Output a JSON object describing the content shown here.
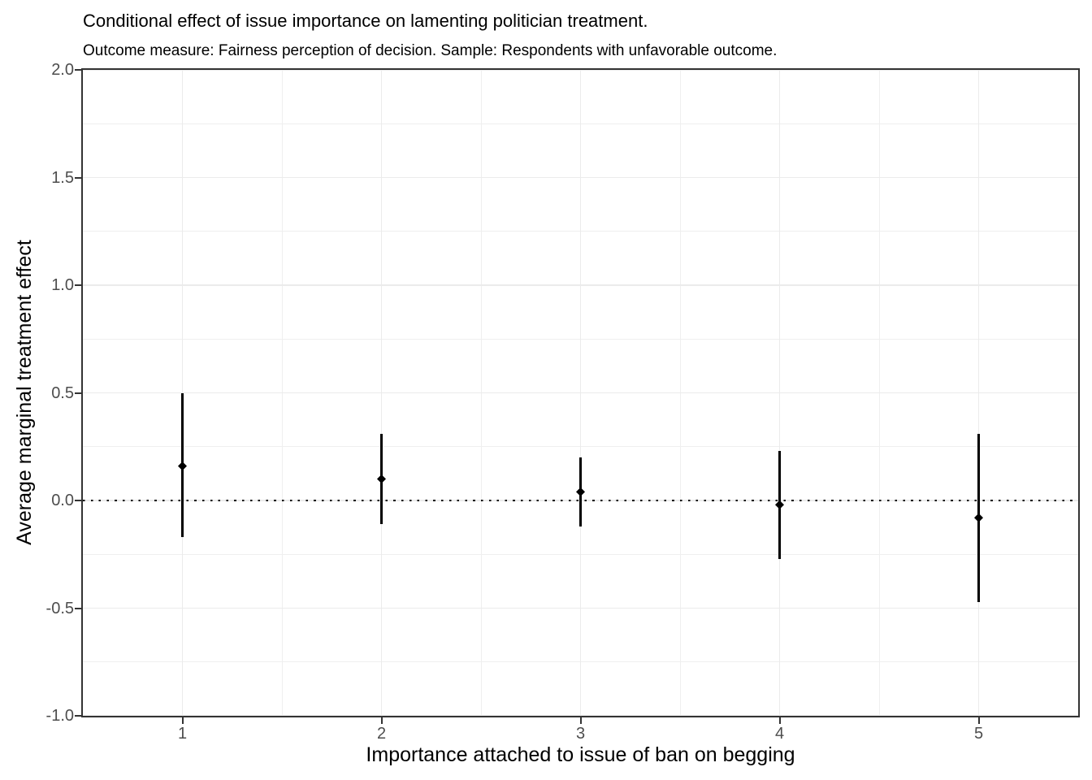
{
  "chart_data": {
    "type": "pointrange",
    "title": "Conditional effect of issue importance on lamenting politician treatment.",
    "subtitle": "Outcome measure: Fairness perception of decision. Sample: Respondents with unfavorable outcome.",
    "xlabel": "Importance attached to issue of ban on begging",
    "ylabel": "Average marginal treatment effect",
    "xlim": [
      0.5,
      5.5
    ],
    "ylim": [
      -1.0,
      2.0
    ],
    "grid": true,
    "legend": "none",
    "x_ticks": [
      {
        "value": 1,
        "label": "1"
      },
      {
        "value": 2,
        "label": "2"
      },
      {
        "value": 3,
        "label": "3"
      },
      {
        "value": 4,
        "label": "4"
      },
      {
        "value": 5,
        "label": "5"
      }
    ],
    "y_ticks": [
      {
        "value": 2.0,
        "label": "2.0"
      },
      {
        "value": 1.5,
        "label": "1.5"
      },
      {
        "value": 1.0,
        "label": "1.0"
      },
      {
        "value": 0.5,
        "label": "0.5"
      },
      {
        "value": 0.0,
        "label": "0.0"
      },
      {
        "value": -0.5,
        "label": "-0.5"
      },
      {
        "value": -1.0,
        "label": "-1.0"
      }
    ],
    "x_minor": [
      1.5,
      2.5,
      3.5,
      4.5
    ],
    "y_minor": [
      1.75,
      1.25,
      0.75,
      0.25,
      -0.25,
      -0.75
    ],
    "reference_line": {
      "y": 0,
      "style": "dotted"
    },
    "series": [
      {
        "name": "Average marginal treatment effect",
        "points": [
          {
            "x": 1,
            "estimate": 0.16,
            "ci_low": -0.17,
            "ci_high": 0.5
          },
          {
            "x": 2,
            "estimate": 0.1,
            "ci_low": -0.11,
            "ci_high": 0.31
          },
          {
            "x": 3,
            "estimate": 0.04,
            "ci_low": -0.12,
            "ci_high": 0.2
          },
          {
            "x": 4,
            "estimate": -0.02,
            "ci_low": -0.27,
            "ci_high": 0.23
          },
          {
            "x": 5,
            "estimate": -0.08,
            "ci_low": -0.47,
            "ci_high": 0.31
          }
        ]
      }
    ],
    "colors": {
      "background": "#FFFFFF",
      "panel_border": "#333333",
      "grid_major": "#EBEBEB",
      "grid_minor": "#EFEFEF",
      "axis_text": "#4D4D4D",
      "text": "#000000",
      "point": "#000000",
      "interval": "#000000",
      "reference": "#000000"
    }
  }
}
